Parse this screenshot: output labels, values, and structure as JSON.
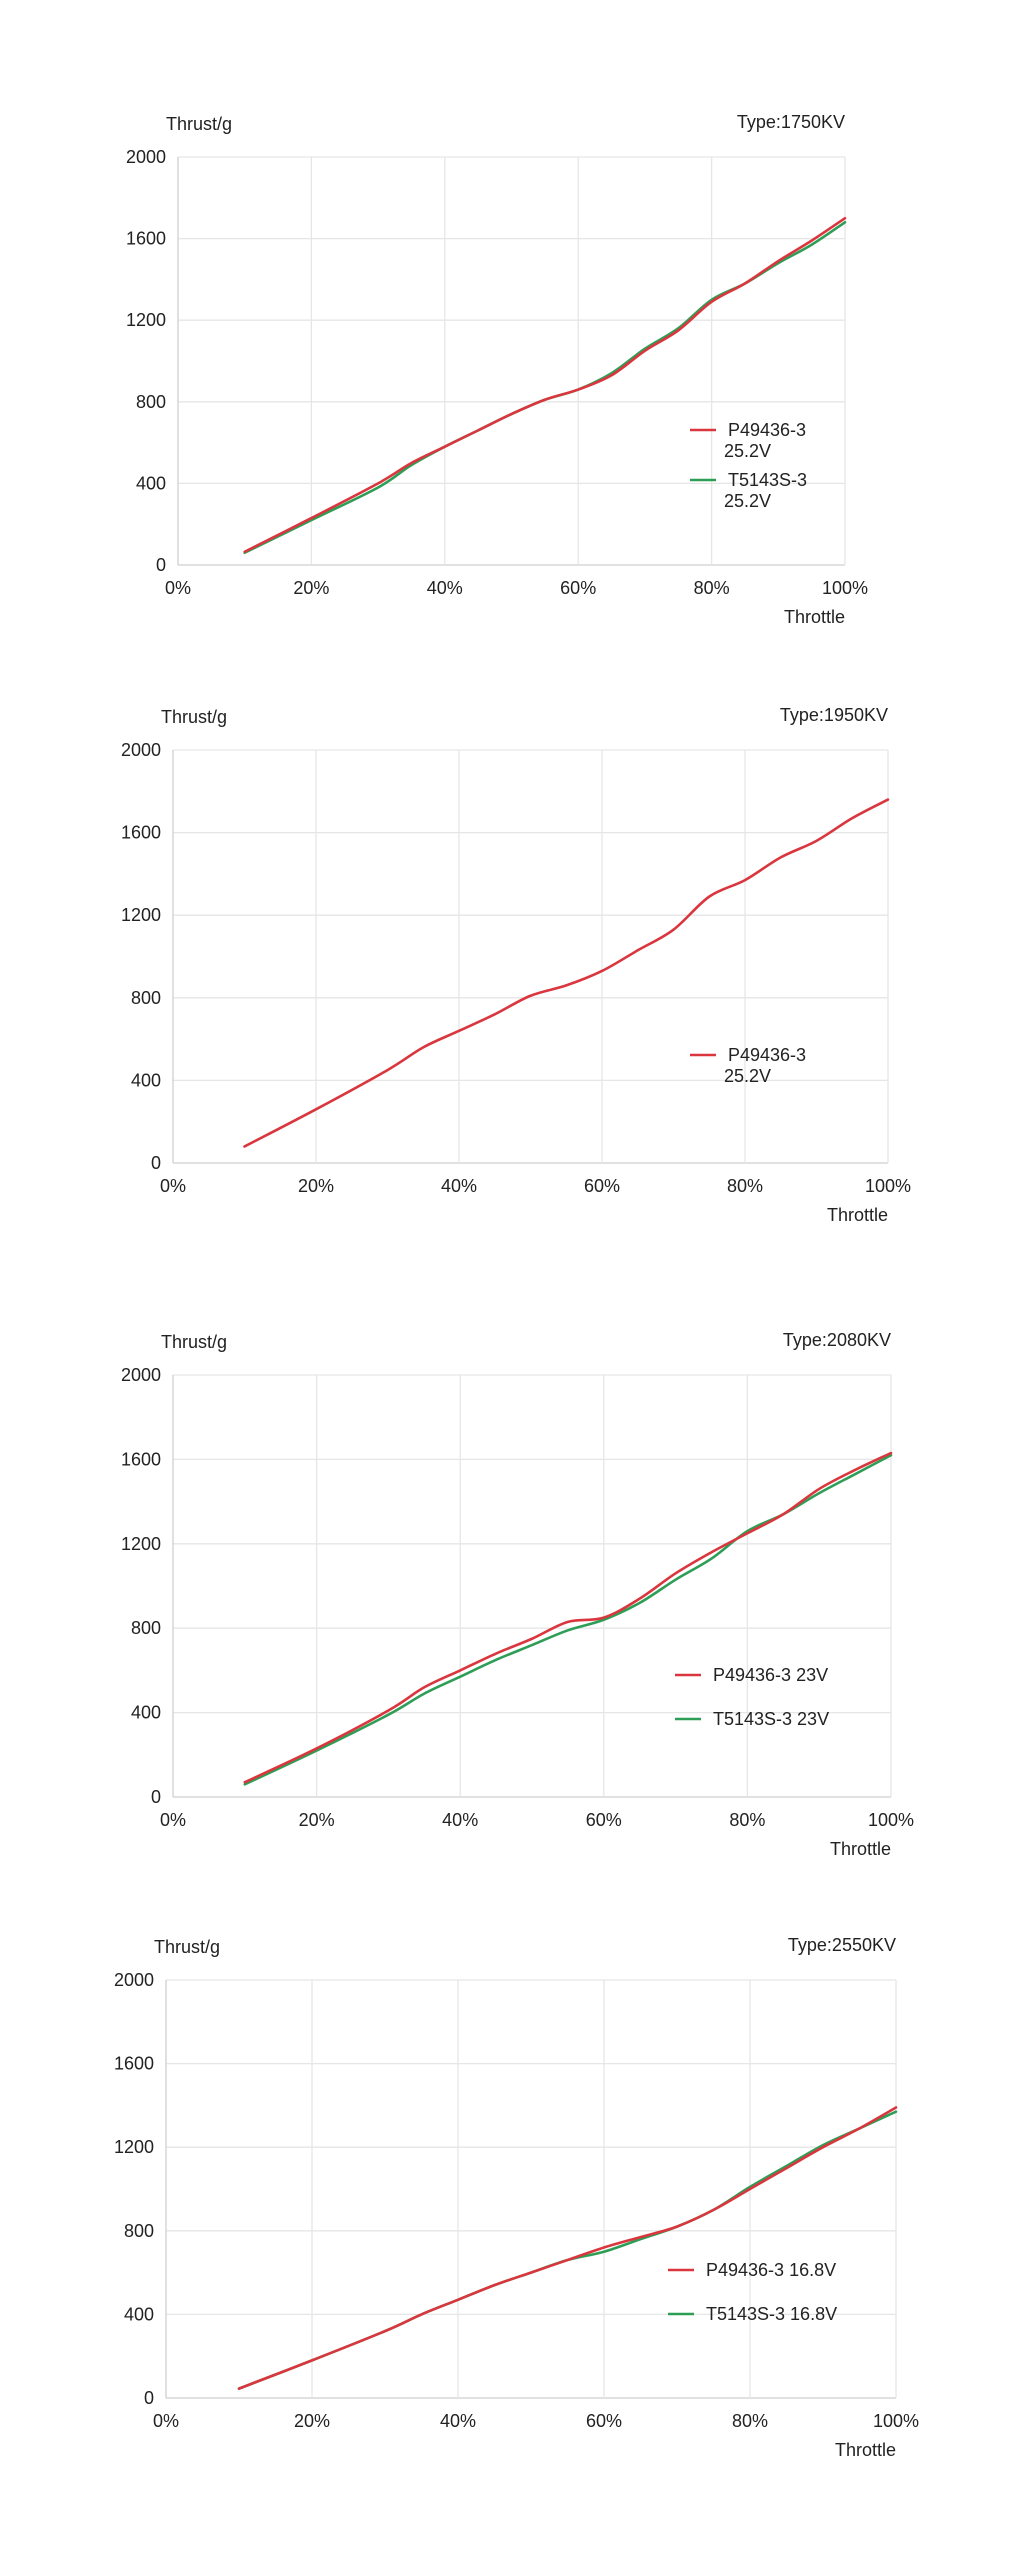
{
  "colors": {
    "red": "#d9363e",
    "green": "#2e9e57"
  },
  "chart_data": [
    {
      "type": "line",
      "type_label": "Type:1750KV",
      "ylabel": "Thrust/g",
      "xlabel": "Throttle",
      "xlim": [
        0,
        100
      ],
      "ylim": [
        0,
        2000
      ],
      "x_ticks": [
        "0%",
        "20%",
        "40%",
        "60%",
        "80%",
        "100%"
      ],
      "y_ticks": [
        "0",
        "400",
        "800",
        "1200",
        "1600",
        "2000"
      ],
      "legend_position": "lower-right",
      "series": [
        {
          "name": "P49436-3 25.2V",
          "legend_lines": [
            "P49436-3",
            "25.2V"
          ],
          "color": "#d9363e",
          "x": [
            10,
            20,
            30,
            35,
            40,
            45,
            50,
            55,
            60,
            65,
            70,
            75,
            80,
            85,
            90,
            95,
            100
          ],
          "y": [
            65,
            230,
            400,
            500,
            580,
            660,
            740,
            810,
            860,
            930,
            1050,
            1150,
            1290,
            1380,
            1490,
            1590,
            1700
          ]
        },
        {
          "name": "T5143S-3 25.2V",
          "legend_lines": [
            "T5143S-3",
            "25.2V"
          ],
          "color": "#2e9e57",
          "x": [
            10,
            20,
            30,
            35,
            40,
            45,
            50,
            55,
            60,
            65,
            70,
            75,
            80,
            85,
            90,
            95,
            100
          ],
          "y": [
            60,
            220,
            380,
            490,
            580,
            660,
            740,
            810,
            860,
            940,
            1060,
            1160,
            1300,
            1380,
            1480,
            1570,
            1680
          ]
        }
      ]
    },
    {
      "type": "line",
      "type_label": "Type:1950KV",
      "ylabel": "Thrust/g",
      "xlabel": "Throttle",
      "xlim": [
        0,
        100
      ],
      "ylim": [
        0,
        2000
      ],
      "x_ticks": [
        "0%",
        "20%",
        "40%",
        "60%",
        "80%",
        "100%"
      ],
      "y_ticks": [
        "0",
        "400",
        "800",
        "1200",
        "1600",
        "2000"
      ],
      "legend_position": "lower-right",
      "series": [
        {
          "name": "P49436-3 25.2V",
          "legend_lines": [
            "P49436-3",
            "25.2V"
          ],
          "color": "#d9363e",
          "x": [
            10,
            20,
            30,
            35,
            40,
            45,
            50,
            55,
            60,
            65,
            70,
            75,
            80,
            85,
            90,
            95,
            100
          ],
          "y": [
            80,
            260,
            450,
            560,
            640,
            720,
            810,
            860,
            930,
            1030,
            1130,
            1290,
            1370,
            1480,
            1560,
            1670,
            1760
          ]
        }
      ]
    },
    {
      "type": "line",
      "type_label": "Type:2080KV",
      "ylabel": "Thrust/g",
      "xlabel": "Throttle",
      "xlim": [
        0,
        100
      ],
      "ylim": [
        0,
        2000
      ],
      "x_ticks": [
        "0%",
        "20%",
        "40%",
        "60%",
        "80%",
        "100%"
      ],
      "y_ticks": [
        "0",
        "400",
        "800",
        "1200",
        "1600",
        "2000"
      ],
      "legend_position": "lower-right",
      "series": [
        {
          "name": "P49436-3 23V",
          "legend_lines": [
            "P49436-3 23V"
          ],
          "color": "#d9363e",
          "x": [
            10,
            20,
            30,
            35,
            40,
            45,
            50,
            55,
            60,
            65,
            70,
            75,
            80,
            85,
            90,
            95,
            100
          ],
          "y": [
            70,
            230,
            410,
            520,
            600,
            680,
            750,
            830,
            850,
            940,
            1060,
            1160,
            1250,
            1340,
            1460,
            1550,
            1630
          ]
        },
        {
          "name": "T5143S-3 23V",
          "legend_lines": [
            "T5143S-3 23V"
          ],
          "color": "#2e9e57",
          "x": [
            10,
            20,
            30,
            35,
            40,
            45,
            50,
            55,
            60,
            65,
            70,
            75,
            80,
            85,
            90,
            95,
            100
          ],
          "y": [
            60,
            220,
            390,
            490,
            570,
            650,
            720,
            790,
            840,
            920,
            1030,
            1130,
            1260,
            1340,
            1440,
            1530,
            1620
          ]
        }
      ]
    },
    {
      "type": "line",
      "type_label": "Type:2550KV",
      "ylabel": "Thrust/g",
      "xlabel": "Throttle",
      "xlim": [
        0,
        100
      ],
      "ylim": [
        0,
        2000
      ],
      "x_ticks": [
        "0%",
        "20%",
        "40%",
        "60%",
        "80%",
        "100%"
      ],
      "y_ticks": [
        "0",
        "400",
        "800",
        "1200",
        "1600",
        "2000"
      ],
      "legend_position": "lower-right",
      "series": [
        {
          "name": "P49436-3 16.8V",
          "legend_lines": [
            "P49436-3 16.8V"
          ],
          "color": "#d9363e",
          "x": [
            10,
            20,
            30,
            35,
            40,
            45,
            50,
            55,
            60,
            65,
            70,
            75,
            80,
            85,
            90,
            95,
            100
          ],
          "y": [
            45,
            180,
            320,
            400,
            470,
            540,
            600,
            660,
            720,
            770,
            820,
            900,
            1000,
            1100,
            1200,
            1290,
            1390
          ]
        },
        {
          "name": "T5143S-3 16.8V",
          "legend_lines": [
            "T5143S-3 16.8V"
          ],
          "color": "#2e9e57",
          "x": [
            10,
            20,
            30,
            35,
            40,
            45,
            50,
            55,
            60,
            65,
            70,
            75,
            80,
            85,
            90,
            95,
            100
          ],
          "y": [
            45,
            180,
            320,
            400,
            470,
            540,
            600,
            660,
            700,
            760,
            820,
            900,
            1010,
            1110,
            1210,
            1290,
            1370
          ]
        }
      ]
    }
  ]
}
